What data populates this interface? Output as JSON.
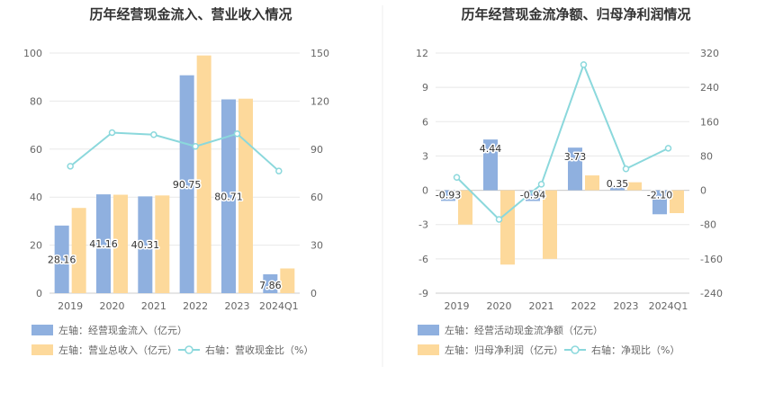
{
  "chart_data": [
    {
      "type": "bar",
      "title": "历年经营现金流入、营业收入情况",
      "categories": [
        "2019",
        "2020",
        "2021",
        "2022",
        "2023",
        "2024Q1"
      ],
      "left_axis": {
        "ticks": [
          "0",
          "20",
          "40",
          "60",
          "80",
          "100"
        ],
        "min": 0,
        "max": 100
      },
      "right_axis": {
        "ticks": [
          "0",
          "30",
          "60",
          "90",
          "120",
          "150"
        ],
        "min": 0,
        "max": 150
      },
      "series": [
        {
          "name": "左轴：经营现金流入（亿元）",
          "axis": "left",
          "kind": "bar",
          "color": "#8fb0df",
          "values": [
            28.16,
            41.16,
            40.31,
            90.75,
            80.71,
            7.86
          ],
          "labels": [
            "28.16",
            "41.16",
            "40.31",
            "90.75",
            "80.71",
            "7.86"
          ]
        },
        {
          "name": "左轴：营业总收入（亿元）",
          "axis": "left",
          "kind": "bar",
          "color": "#fdd99b",
          "values": [
            35.5,
            41.0,
            40.7,
            99.0,
            81.0,
            10.3
          ]
        },
        {
          "name": "右轴：营收现金比（%）",
          "axis": "right",
          "kind": "line",
          "color": "#8bd8dc",
          "values": [
            79.3,
            100.3,
            99.0,
            91.7,
            99.6,
            76.3
          ]
        }
      ],
      "grid": true,
      "legend_position": "bottom-left"
    },
    {
      "type": "bar",
      "title": "历年经营现金流净额、归母净利润情况",
      "categories": [
        "2019",
        "2020",
        "2021",
        "2022",
        "2023",
        "2024Q1"
      ],
      "left_axis": {
        "ticks": [
          "-9",
          "-6",
          "-3",
          "0",
          "3",
          "6",
          "9",
          "12"
        ],
        "min": -9,
        "max": 12
      },
      "right_axis": {
        "ticks": [
          "-240",
          "-160",
          "-80",
          "0",
          "80",
          "160",
          "240",
          "320"
        ],
        "min": -240,
        "max": 320
      },
      "series": [
        {
          "name": "左轴：经营活动现金流净额（亿元）",
          "axis": "left",
          "kind": "bar",
          "color": "#8fb0df",
          "values": [
            -0.93,
            4.44,
            -0.94,
            3.73,
            0.35,
            -2.1
          ],
          "labels": [
            "-0.93",
            "4.44",
            "-0.94",
            "3.73",
            "0.35",
            "-2.10"
          ]
        },
        {
          "name": "左轴：归母净利润（亿元）",
          "axis": "left",
          "kind": "bar",
          "color": "#fdd99b",
          "values": [
            -3.0,
            -6.5,
            -6.0,
            1.3,
            0.7,
            -2.0
          ]
        },
        {
          "name": "右轴：净现比（%）",
          "axis": "right",
          "kind": "line",
          "color": "#8bd8dc",
          "values": [
            30,
            -68,
            14,
            293,
            50,
            98
          ]
        }
      ],
      "grid": true,
      "legend_position": "bottom-left"
    }
  ]
}
